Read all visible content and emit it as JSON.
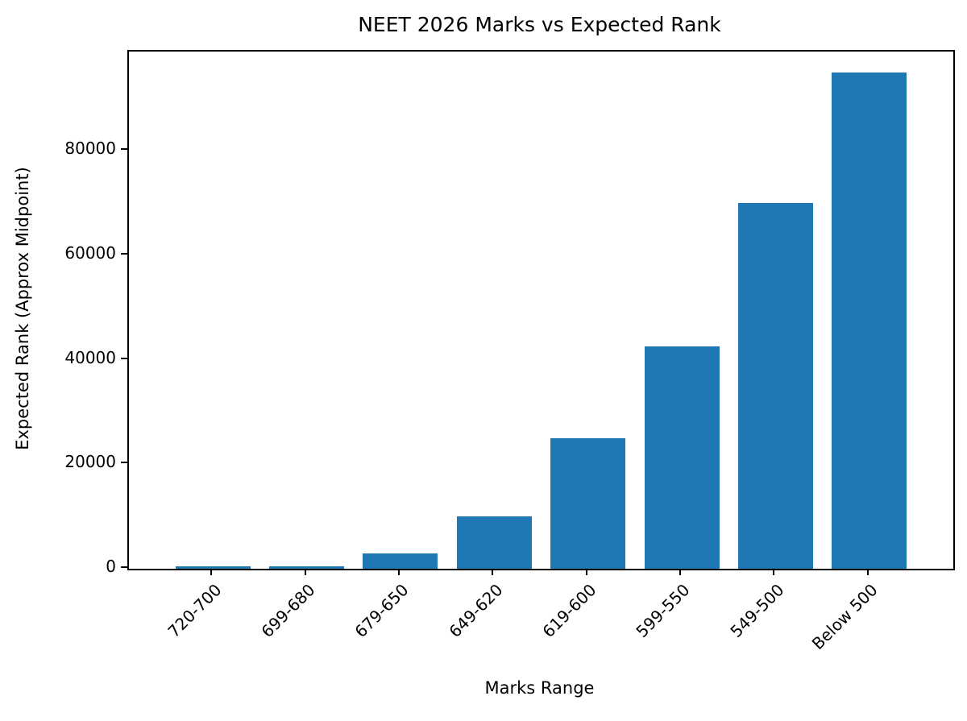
{
  "chart_data": {
    "type": "bar",
    "title": "NEET 2026 Marks vs Expected Rank",
    "xlabel": "Marks Range",
    "ylabel": "Expected Rank (Approx Midpoint)",
    "categories": [
      "720-700",
      "699-680",
      "679-650",
      "649-620",
      "619-600",
      "599-550",
      "549-500",
      "Below 500"
    ],
    "values": [
      500,
      500,
      3000,
      10000,
      25000,
      42500,
      70000,
      95000
    ],
    "ylim": [
      0,
      99000
    ],
    "yticks": [
      0,
      20000,
      40000,
      60000,
      80000
    ],
    "ytick_labels": [
      "0",
      "20000",
      "40000",
      "60000",
      "80000"
    ],
    "bar_color": "#1f77b4",
    "text_color": "#000000",
    "grid": false,
    "legend": "none",
    "x_tick_rotation_deg": 45
  }
}
